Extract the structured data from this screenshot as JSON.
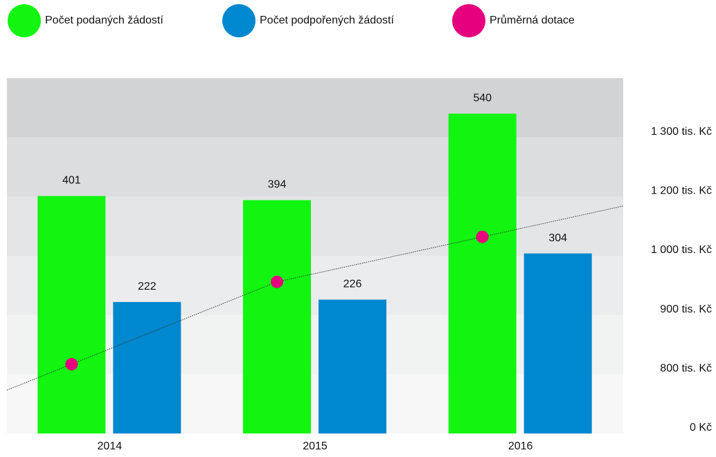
{
  "chart_data": {
    "type": "bar",
    "categories": [
      "2014",
      "2015",
      "2016"
    ],
    "series": [
      {
        "name": "Počet podaných žádostí",
        "color": "#11f511",
        "values": [
          401,
          394,
          540
        ]
      },
      {
        "name": "Počet podpořených žádostí",
        "color": "#0088cf",
        "values": [
          222,
          226,
          304
        ]
      },
      {
        "name": "Průměrná dotace",
        "color": "#e6007e",
        "type": "line",
        "axis": "y2",
        "values": [
          817,
          956,
          1064
        ]
      }
    ],
    "ylim": [
      0,
      600
    ],
    "y2ticks": [
      {
        "value": 0,
        "label": "0 Kč"
      },
      {
        "value": 800,
        "label": "800 tis. Kč"
      },
      {
        "value": 900,
        "label": "900 tis. Kč"
      },
      {
        "value": 1000,
        "label": "1 000 tis. Kč"
      },
      {
        "value": 1200,
        "label": "1 200 tis. Kč"
      },
      {
        "value": 1300,
        "label": "1 300 tis. Kč"
      }
    ],
    "legend": "top-left",
    "grid": true
  }
}
